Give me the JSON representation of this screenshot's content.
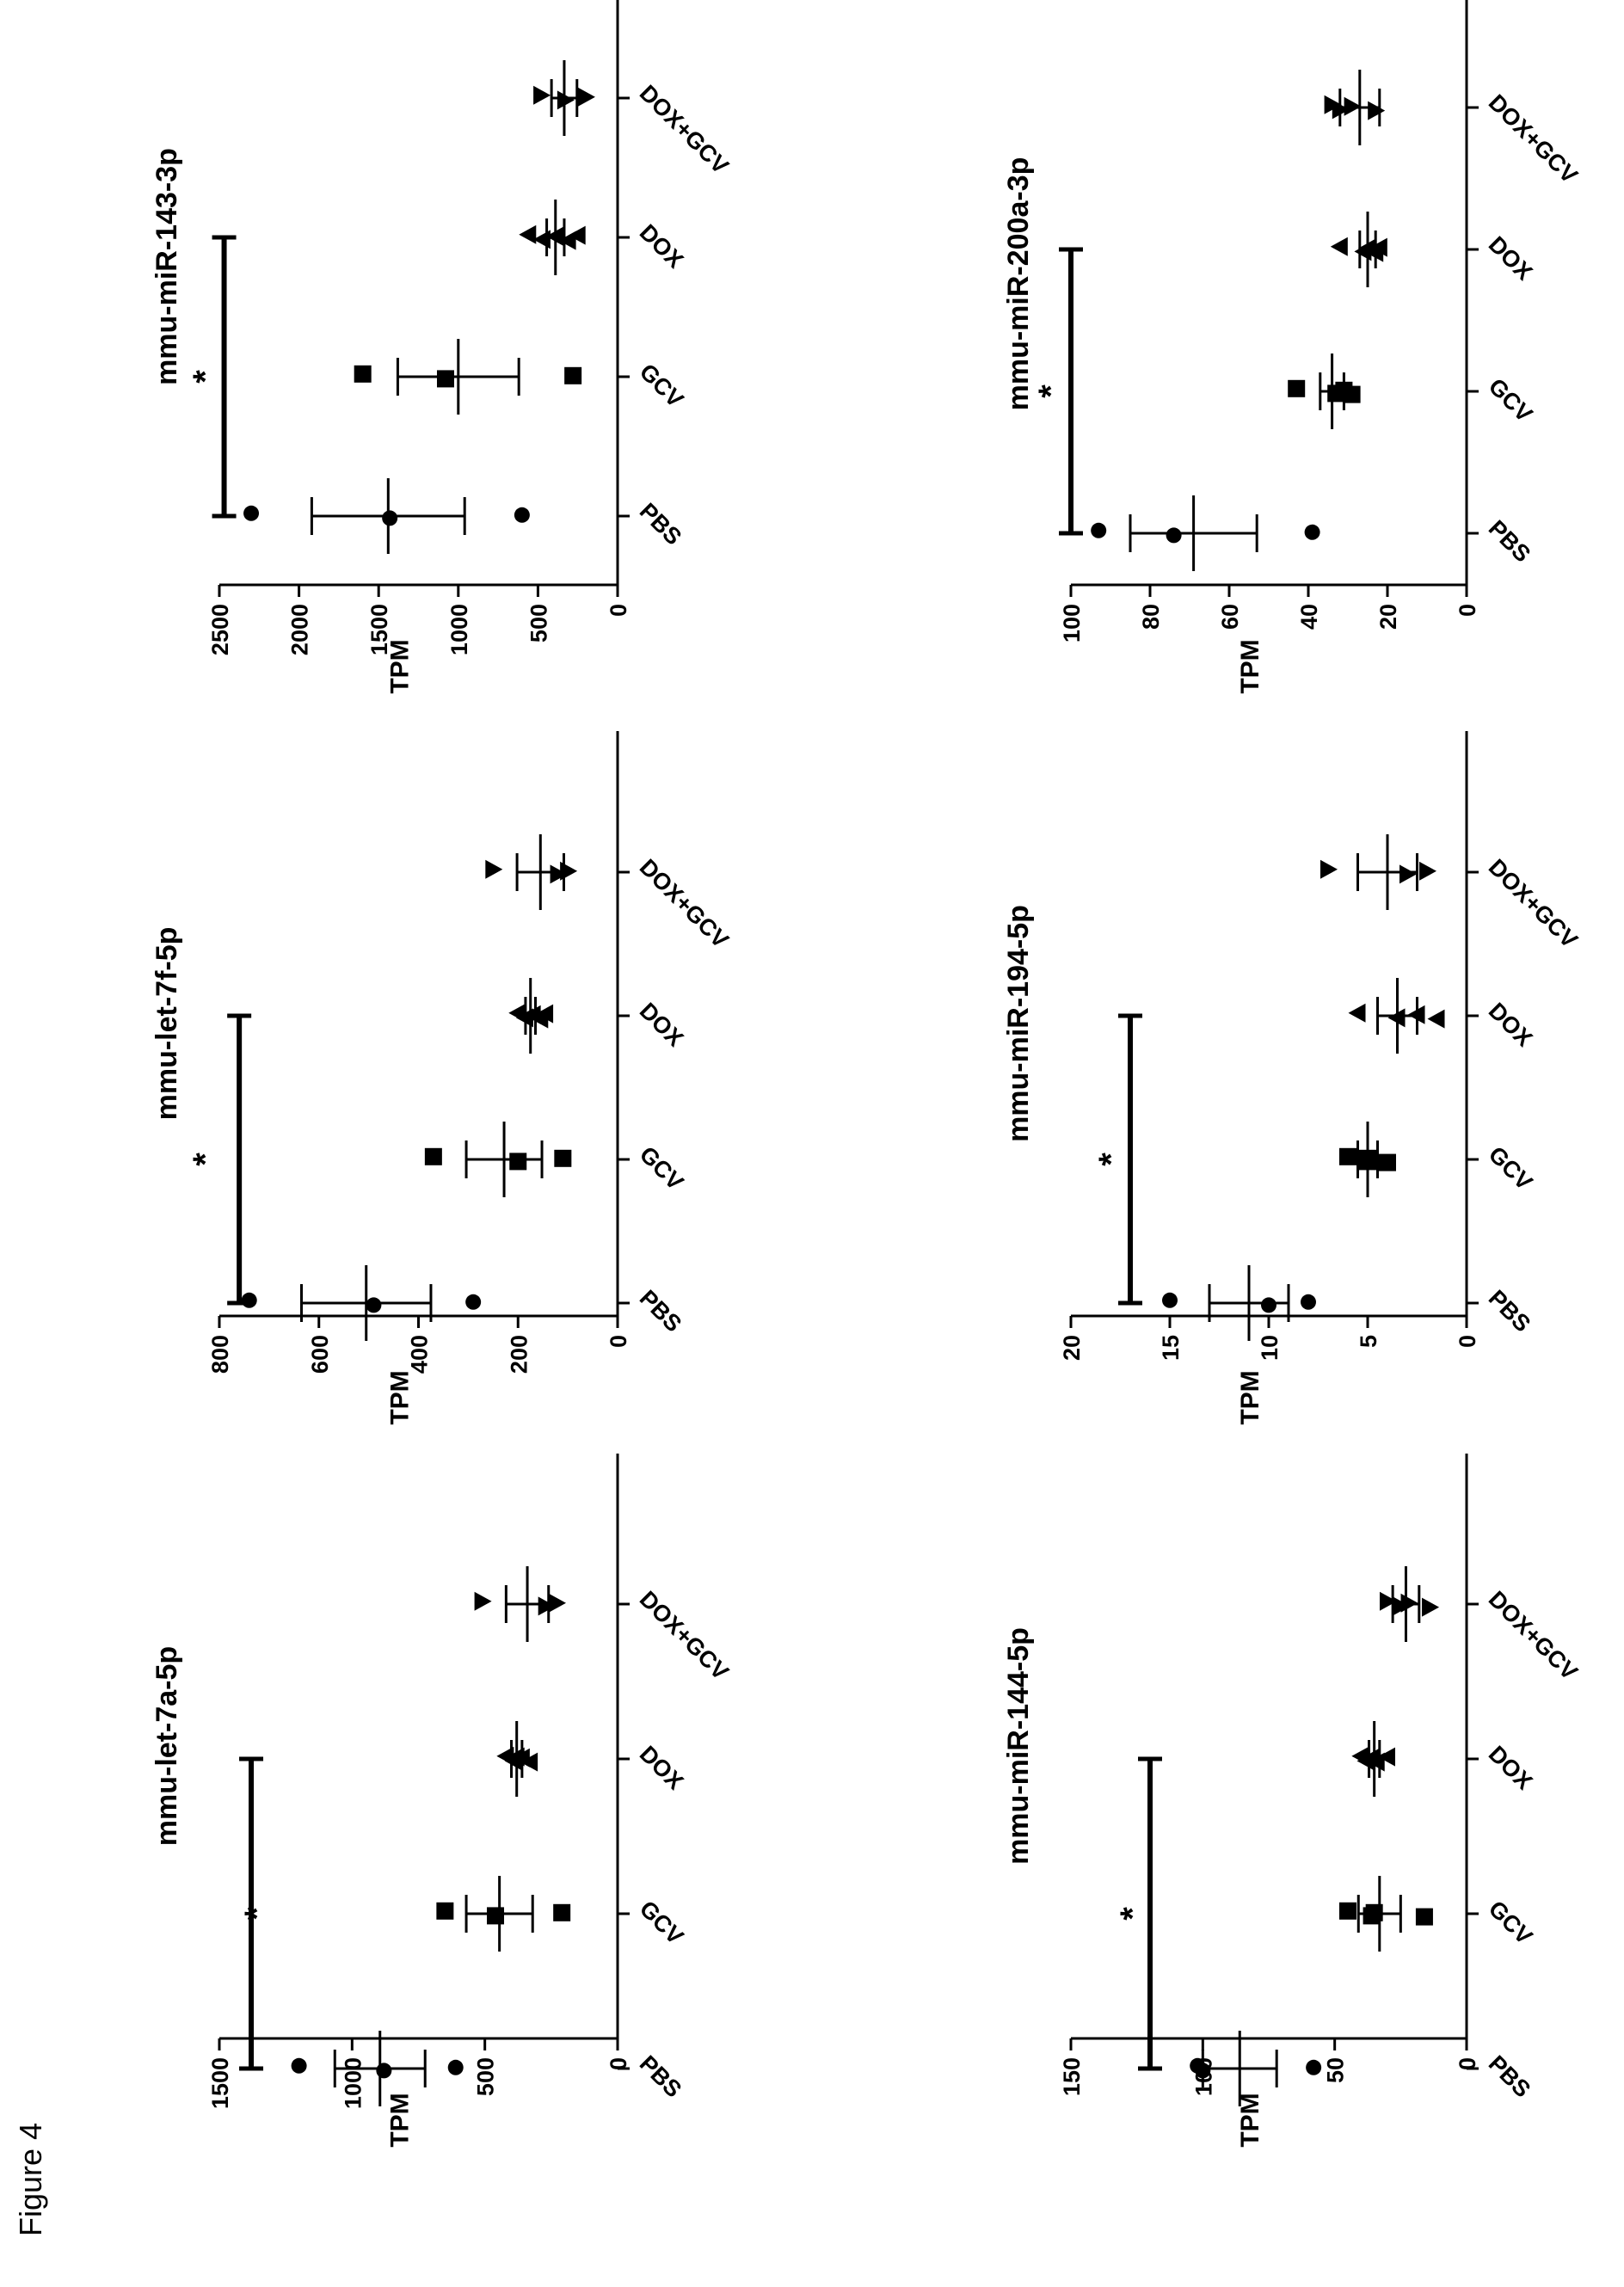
{
  "figure_label": "Figure 4",
  "y_axis_label": "TPM",
  "groups": [
    "PBS",
    "GCV",
    "DOX",
    "DOX+GCV"
  ],
  "chart_data": [
    {
      "type": "scatter",
      "title": "mmu-let-7a-5p",
      "ylabel": "TPM",
      "ylim": [
        0,
        1500
      ],
      "yticks": [
        0,
        500,
        1000,
        1500
      ],
      "categories": [
        "PBS",
        "GCV",
        "DOX",
        "DOX+GCV"
      ],
      "series": [
        {
          "points": [
            1200,
            880,
            610
          ],
          "mean": 895,
          "sem": 170
        },
        {
          "points": [
            650,
            460,
            210
          ],
          "mean": 445,
          "sem": 125
        },
        {
          "points": [
            420,
            390,
            360,
            330,
            380
          ],
          "mean": 380,
          "sem": 20
        },
        {
          "points": [
            510,
            270,
            230
          ],
          "mean": 340,
          "sem": 80
        }
      ],
      "significance": {
        "from": "PBS",
        "to": "DOX",
        "y": 1380,
        "label": "*"
      }
    },
    {
      "type": "scatter",
      "title": "mmu-let-7f-5p",
      "ylabel": "TPM",
      "ylim": [
        0,
        800
      ],
      "yticks": [
        0,
        200,
        400,
        600,
        800
      ],
      "categories": [
        "PBS",
        "GCV",
        "DOX",
        "DOX+GCV"
      ],
      "series": [
        {
          "points": [
            740,
            490,
            290
          ],
          "mean": 505,
          "sem": 130
        },
        {
          "points": [
            370,
            200,
            110
          ],
          "mean": 228,
          "sem": 76
        },
        {
          "points": [
            200,
            185,
            170,
            155,
            145
          ],
          "mean": 175,
          "sem": 10
        },
        {
          "points": [
            250,
            120,
            100
          ],
          "mean": 155,
          "sem": 47
        }
      ],
      "significance": {
        "from": "PBS",
        "to": "DOX",
        "y": 760,
        "label": "*"
      }
    },
    {
      "type": "scatter",
      "title": "mmu-miR-143-3p",
      "ylabel": "TPM",
      "ylim": [
        0,
        2500
      ],
      "yticks": [
        0,
        500,
        1000,
        1500,
        2000,
        2500
      ],
      "categories": [
        "PBS",
        "GCV",
        "DOX",
        "DOX+GCV"
      ],
      "series": [
        {
          "points": [
            2300,
            1430,
            600
          ],
          "mean": 1440,
          "sem": 480
        },
        {
          "points": [
            1600,
            1080,
            280
          ],
          "mean": 1000,
          "sem": 380
        },
        {
          "points": [
            560,
            470,
            390,
            310,
            250
          ],
          "mean": 390,
          "sem": 55
        },
        {
          "points": [
            480,
            330,
            200
          ],
          "mean": 335,
          "sem": 80
        }
      ],
      "significance": {
        "from": "PBS",
        "to": "DOX",
        "y": 2470,
        "label": "*"
      }
    },
    {
      "type": "scatter",
      "title": "mmu-miR-144-5p",
      "ylabel": "TPM",
      "ylim": [
        0,
        150
      ],
      "yticks": [
        0,
        50,
        100,
        150
      ],
      "categories": [
        "PBS",
        "GCV",
        "DOX",
        "DOX+GCV"
      ],
      "series": [
        {
          "points": [
            102,
            100,
            58
          ],
          "mean": 86,
          "sem": 14
        },
        {
          "points": [
            45,
            36,
            35,
            16
          ],
          "mean": 33,
          "sem": 8
        },
        {
          "points": [
            40,
            38,
            36,
            34,
            30
          ],
          "mean": 35,
          "sem": 2
        },
        {
          "points": [
            30,
            25,
            22,
            14
          ],
          "mean": 23,
          "sem": 5
        }
      ],
      "significance": {
        "from": "PBS",
        "to": "DOX",
        "y": 120,
        "label": "*"
      }
    },
    {
      "type": "scatter",
      "title": "mmu-miR-194-5p",
      "ylabel": "TPM",
      "ylim": [
        0,
        20
      ],
      "yticks": [
        0,
        5,
        10,
        15,
        20
      ],
      "categories": [
        "PBS",
        "GCV",
        "DOX",
        "DOX+GCV"
      ],
      "series": [
        {
          "points": [
            15,
            10,
            8
          ],
          "mean": 11,
          "sem": 2
        },
        {
          "points": [
            6,
            5,
            5,
            4
          ],
          "mean": 5,
          "sem": 0.5
        },
        {
          "points": [
            5.5,
            3.5,
            2.5,
            1.5
          ],
          "mean": 3.5,
          "sem": 1
        },
        {
          "points": [
            7,
            3,
            2
          ],
          "mean": 4,
          "sem": 1.5
        }
      ],
      "significance": {
        "from": "PBS",
        "to": "DOX",
        "y": 17,
        "label": "*"
      }
    },
    {
      "type": "scatter",
      "title": "mmu-miR-200a-3p",
      "ylabel": "TPM",
      "ylim": [
        0,
        100
      ],
      "yticks": [
        0,
        20,
        40,
        60,
        80,
        100
      ],
      "categories": [
        "PBS",
        "GCV",
        "DOX",
        "DOX+GCV"
      ],
      "series": [
        {
          "points": [
            93,
            74,
            39
          ],
          "mean": 69,
          "sem": 16
        },
        {
          "points": [
            43,
            33,
            31,
            29
          ],
          "mean": 34,
          "sem": 3
        },
        {
          "points": [
            32,
            26,
            25,
            23,
            22
          ],
          "mean": 25,
          "sem": 2
        },
        {
          "points": [
            34,
            32,
            29,
            23
          ],
          "mean": 27,
          "sem": 5
        }
      ],
      "significance": {
        "from": "PBS",
        "to": "DOX",
        "y": 100,
        "label": "*"
      }
    }
  ]
}
